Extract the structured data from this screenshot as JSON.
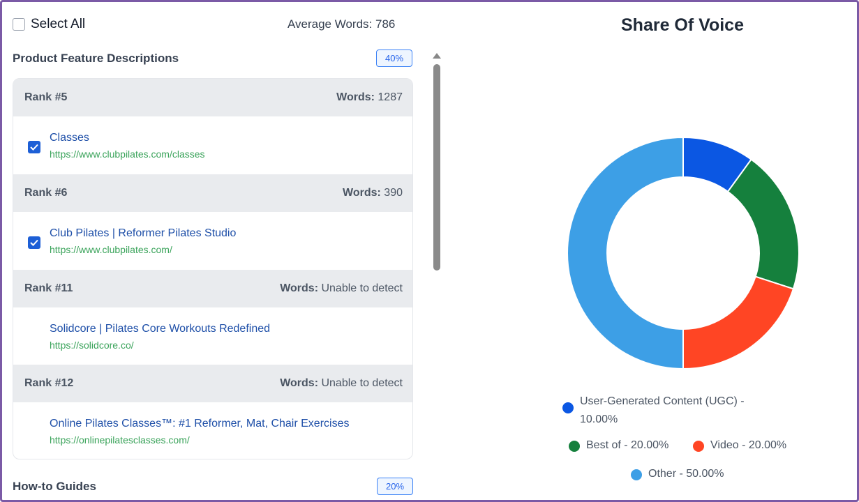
{
  "header": {
    "select_all_label": "Select All",
    "average_words": "Average Words: 786"
  },
  "sections": [
    {
      "title": "Product Feature Descriptions",
      "percent": "40%"
    },
    {
      "title": "How-to Guides",
      "percent": "20%"
    }
  ],
  "results": [
    {
      "rank": "Rank #5",
      "words_label": "Words:",
      "words_value": "1287",
      "title": "Classes",
      "url": "https://www.clubpilates.com/classes",
      "checked": true
    },
    {
      "rank": "Rank #6",
      "words_label": "Words:",
      "words_value": "390",
      "title": "Club Pilates | Reformer Pilates Studio",
      "url": "https://www.clubpilates.com/",
      "checked": true
    },
    {
      "rank": "Rank #11",
      "words_label": "Words:",
      "words_value": "Unable to detect",
      "title": "Solidcore | Pilates Core Workouts Redefined",
      "url": "https://solidcore.co/",
      "checked": false
    },
    {
      "rank": "Rank #12",
      "words_label": "Words:",
      "words_value": "Unable to detect",
      "title": "Online Pilates Classes™: #1 Reformer, Mat, Chair Exercises",
      "url": "https://onlinepilatesclasses.com/",
      "checked": false
    }
  ],
  "chart_data": {
    "type": "pie",
    "title": "Share Of Voice",
    "donut": true,
    "categories": [
      "User-Generated Content (UGC)",
      "Best of",
      "Video",
      "Other"
    ],
    "values": [
      10,
      20,
      20,
      50
    ],
    "colors": [
      "#0b57e3",
      "#15803d",
      "#ff4524",
      "#3d9fe6"
    ],
    "legend_labels": [
      "User-Generated Content (UGC) -",
      "10.00%",
      "Best of - 20.00%",
      "Video - 20.00%",
      "Other - 50.00%"
    ]
  }
}
